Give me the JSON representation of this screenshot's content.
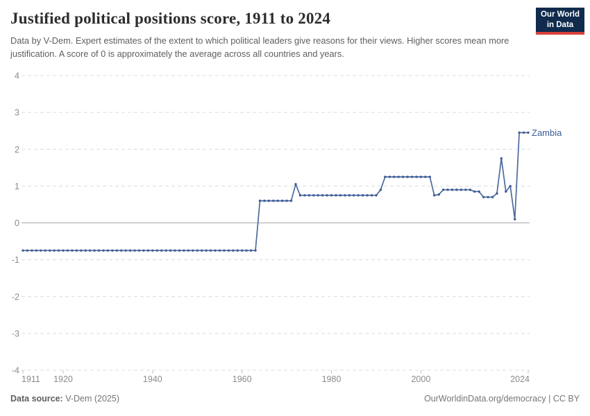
{
  "header": {
    "title": "Justified political positions score, 1911 to 2024",
    "subtitle": "Data by V-Dem. Expert estimates of the extent to which political leaders give reasons for their views. Higher scores mean more justification. A score of 0 is approximately the average across all countries and years.",
    "logo_line1": "Our World",
    "logo_line2": "in Data"
  },
  "footer": {
    "source_label": "Data source:",
    "source_value": " V-Dem (2025)",
    "credit": "OurWorldinData.org/democracy | CC BY"
  },
  "colors": {
    "line": "#4c6a9c",
    "point": "#3d5c96",
    "series_label": "#3d5c96",
    "gridline": "#dcdcdc",
    "zero_line": "#a8a8a8",
    "axis_text": "#8b8b8b",
    "tick_mark": "#bdbdbd",
    "logo_bg": "#102b4d",
    "logo_red": "#d8413a"
  },
  "chart_data": {
    "type": "line",
    "title": "Justified political positions score, 1911 to 2024",
    "xlabel": "",
    "ylabel": "",
    "xlim": [
      1911,
      2024
    ],
    "ylim": [
      -4,
      4
    ],
    "x_ticks": [
      1911,
      1920,
      1940,
      1960,
      1980,
      2000,
      2024
    ],
    "y_ticks": [
      4,
      3,
      2,
      1,
      0,
      -1,
      -2,
      -3,
      -4
    ],
    "grid": "horizontal-dashed",
    "zero_line": true,
    "legend_position": "end-of-line-label",
    "series": [
      {
        "name": "Zambia",
        "points": [
          [
            1911,
            -0.75
          ],
          [
            1912,
            -0.75
          ],
          [
            1913,
            -0.75
          ],
          [
            1914,
            -0.75
          ],
          [
            1915,
            -0.75
          ],
          [
            1916,
            -0.75
          ],
          [
            1917,
            -0.75
          ],
          [
            1918,
            -0.75
          ],
          [
            1919,
            -0.75
          ],
          [
            1920,
            -0.75
          ],
          [
            1921,
            -0.75
          ],
          [
            1922,
            -0.75
          ],
          [
            1923,
            -0.75
          ],
          [
            1924,
            -0.75
          ],
          [
            1925,
            -0.75
          ],
          [
            1926,
            -0.75
          ],
          [
            1927,
            -0.75
          ],
          [
            1928,
            -0.75
          ],
          [
            1929,
            -0.75
          ],
          [
            1930,
            -0.75
          ],
          [
            1931,
            -0.75
          ],
          [
            1932,
            -0.75
          ],
          [
            1933,
            -0.75
          ],
          [
            1934,
            -0.75
          ],
          [
            1935,
            -0.75
          ],
          [
            1936,
            -0.75
          ],
          [
            1937,
            -0.75
          ],
          [
            1938,
            -0.75
          ],
          [
            1939,
            -0.75
          ],
          [
            1940,
            -0.75
          ],
          [
            1941,
            -0.75
          ],
          [
            1942,
            -0.75
          ],
          [
            1943,
            -0.75
          ],
          [
            1944,
            -0.75
          ],
          [
            1945,
            -0.75
          ],
          [
            1946,
            -0.75
          ],
          [
            1947,
            -0.75
          ],
          [
            1948,
            -0.75
          ],
          [
            1949,
            -0.75
          ],
          [
            1950,
            -0.75
          ],
          [
            1951,
            -0.75
          ],
          [
            1952,
            -0.75
          ],
          [
            1953,
            -0.75
          ],
          [
            1954,
            -0.75
          ],
          [
            1955,
            -0.75
          ],
          [
            1956,
            -0.75
          ],
          [
            1957,
            -0.75
          ],
          [
            1958,
            -0.75
          ],
          [
            1959,
            -0.75
          ],
          [
            1960,
            -0.75
          ],
          [
            1961,
            -0.75
          ],
          [
            1962,
            -0.75
          ],
          [
            1963,
            -0.75
          ],
          [
            1964,
            0.6
          ],
          [
            1965,
            0.6
          ],
          [
            1966,
            0.6
          ],
          [
            1967,
            0.6
          ],
          [
            1968,
            0.6
          ],
          [
            1969,
            0.6
          ],
          [
            1970,
            0.6
          ],
          [
            1971,
            0.6
          ],
          [
            1972,
            1.05
          ],
          [
            1973,
            0.75
          ],
          [
            1974,
            0.75
          ],
          [
            1975,
            0.75
          ],
          [
            1976,
            0.75
          ],
          [
            1977,
            0.75
          ],
          [
            1978,
            0.75
          ],
          [
            1979,
            0.75
          ],
          [
            1980,
            0.75
          ],
          [
            1981,
            0.75
          ],
          [
            1982,
            0.75
          ],
          [
            1983,
            0.75
          ],
          [
            1984,
            0.75
          ],
          [
            1985,
            0.75
          ],
          [
            1986,
            0.75
          ],
          [
            1987,
            0.75
          ],
          [
            1988,
            0.75
          ],
          [
            1989,
            0.75
          ],
          [
            1990,
            0.75
          ],
          [
            1991,
            0.9
          ],
          [
            1992,
            1.25
          ],
          [
            1993,
            1.25
          ],
          [
            1994,
            1.25
          ],
          [
            1995,
            1.25
          ],
          [
            1996,
            1.25
          ],
          [
            1997,
            1.25
          ],
          [
            1998,
            1.25
          ],
          [
            1999,
            1.25
          ],
          [
            2000,
            1.25
          ],
          [
            2001,
            1.25
          ],
          [
            2002,
            1.25
          ],
          [
            2003,
            0.75
          ],
          [
            2004,
            0.77
          ],
          [
            2005,
            0.9
          ],
          [
            2006,
            0.9
          ],
          [
            2007,
            0.9
          ],
          [
            2008,
            0.9
          ],
          [
            2009,
            0.9
          ],
          [
            2010,
            0.9
          ],
          [
            2011,
            0.9
          ],
          [
            2012,
            0.85
          ],
          [
            2013,
            0.85
          ],
          [
            2014,
            0.7
          ],
          [
            2015,
            0.7
          ],
          [
            2016,
            0.7
          ],
          [
            2017,
            0.8
          ],
          [
            2018,
            1.75
          ],
          [
            2019,
            0.85
          ],
          [
            2020,
            1.0
          ],
          [
            2021,
            0.1
          ],
          [
            2022,
            2.45
          ],
          [
            2023,
            2.45
          ],
          [
            2024,
            2.45
          ]
        ]
      }
    ]
  }
}
